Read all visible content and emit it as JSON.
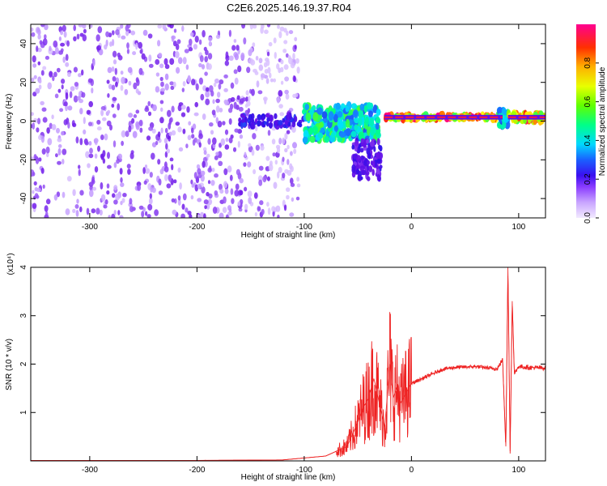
{
  "title": "C2E6.2025.146.19.37.R04",
  "colors": {
    "snr_line": "#ee2222",
    "scatter_base": "#6a11e8",
    "colormap": [
      "#e9dcff",
      "#b98aff",
      "#6a11e8",
      "#2a10e8",
      "#1a70ff",
      "#00e0ff",
      "#00ff80",
      "#80ff00",
      "#ffff00",
      "#ffb000",
      "#ff2000",
      "#ff0080"
    ]
  },
  "chart_data": [
    {
      "type": "scatter",
      "name": "spectrogram",
      "xlabel": "Height of straight line (km)",
      "ylabel": "Frequency (Hz)",
      "xlim": [
        -355,
        125
      ],
      "ylim": [
        -50,
        50
      ],
      "xticks": [
        -300,
        -200,
        -100,
        0,
        100
      ],
      "yticks": [
        -40,
        -20,
        0,
        20,
        40
      ],
      "grid": false,
      "colorbar": {
        "label": "Normalized spectral amplitude",
        "range": [
          0,
          1
        ],
        "ticks": [
          0.0,
          0.2,
          0.4,
          0.6,
          0.8
        ]
      },
      "features": [
        {
          "x": [
            -355,
            -105
          ],
          "y": [
            -50,
            50
          ],
          "amplitude": 0.15
        },
        {
          "x": [
            -160,
            -100
          ],
          "y": [
            -3,
            3
          ],
          "amplitude": 0.3
        },
        {
          "x": [
            -100,
            -30
          ],
          "y": [
            -10,
            8
          ],
          "amplitude": 0.55
        },
        {
          "x": [
            -55,
            -28
          ],
          "y": [
            -30,
            -10
          ],
          "amplitude": 0.25
        },
        {
          "x": [
            -25,
            85
          ],
          "y": [
            1,
            3
          ],
          "amplitude": 0.95
        },
        {
          "x": [
            82,
            90
          ],
          "y": [
            -3,
            6
          ],
          "amplitude": 0.5
        },
        {
          "x": [
            90,
            125
          ],
          "y": [
            0,
            4
          ],
          "amplitude": 0.9
        }
      ]
    },
    {
      "type": "line",
      "name": "snr",
      "xlabel": "Height of straight line (km)",
      "ylabel": "SNR (10 * v/v)",
      "y_multiplier": "(x10⁴)",
      "xlim": [
        -355,
        125
      ],
      "ylim": [
        0,
        4
      ],
      "xticks": [
        -300,
        -200,
        -100,
        0,
        100
      ],
      "yticks": [
        1,
        2,
        3,
        4
      ],
      "grid": false,
      "series": [
        {
          "x": [
            -355,
            -200,
            -120,
            -80,
            -60,
            -50,
            -45,
            -40,
            -35,
            -30,
            -25,
            -20,
            -17,
            -14,
            -10,
            -5,
            0,
            10,
            20,
            30,
            40,
            60,
            80,
            85,
            88,
            90,
            92,
            94,
            96,
            100,
            110,
            125
          ],
          "y": [
            0.01,
            0.01,
            0.02,
            0.1,
            0.3,
            0.8,
            1.1,
            1.3,
            1.7,
            1.2,
            0.7,
            2.0,
            1.3,
            1.5,
            1.2,
            1.4,
            1.6,
            1.7,
            1.8,
            1.9,
            1.93,
            1.95,
            1.9,
            2.1,
            0.3,
            4.0,
            0.2,
            3.3,
            1.8,
            1.95,
            1.93,
            1.92
          ]
        }
      ]
    }
  ]
}
